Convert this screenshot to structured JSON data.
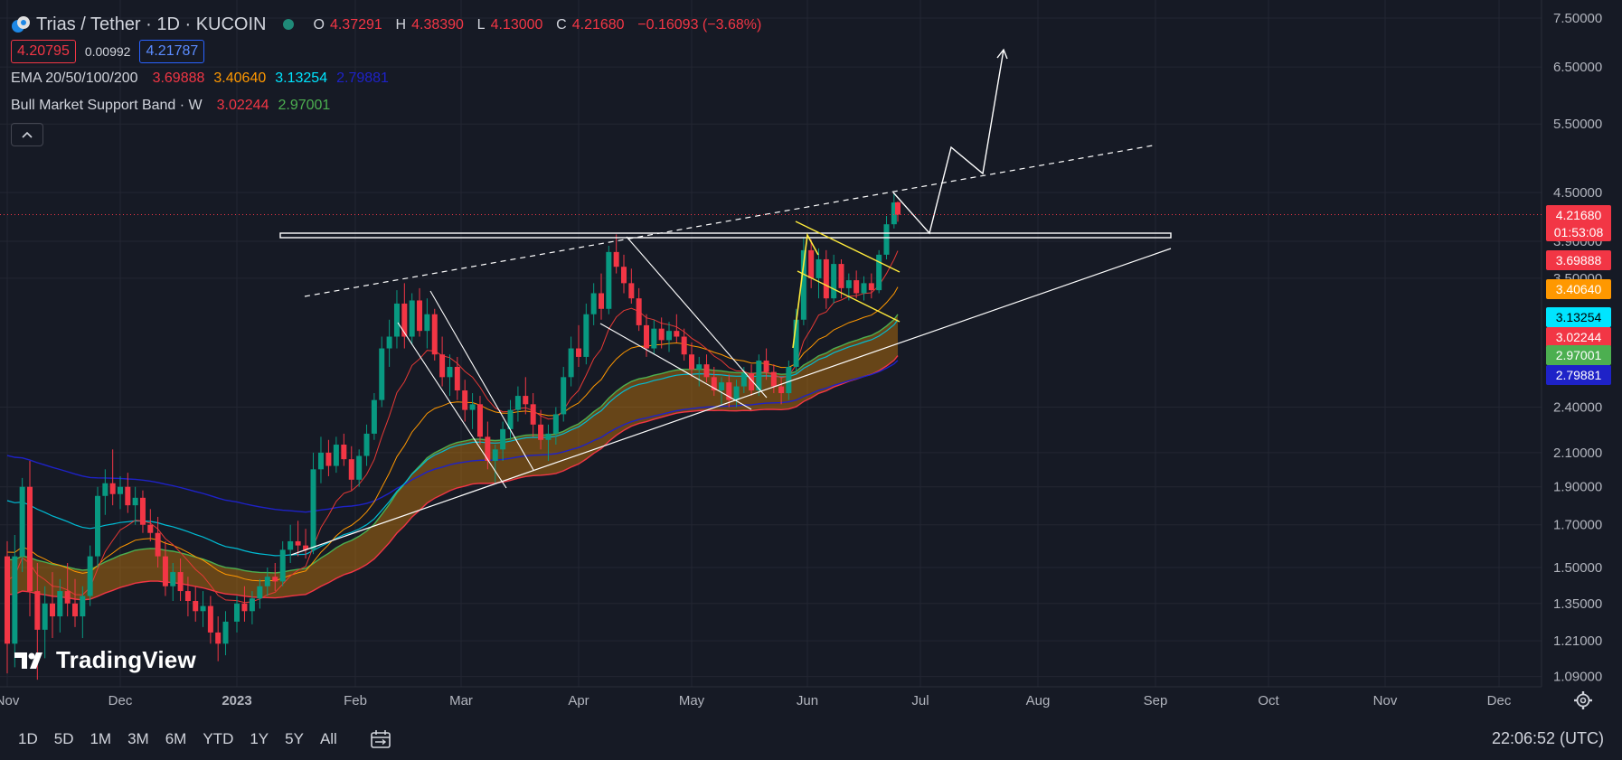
{
  "header": {
    "title": "Trias / Tether · 1D · KUCOIN",
    "ohlc": [
      {
        "k": "O",
        "v": "4.37291"
      },
      {
        "k": "H",
        "v": "4.38390"
      },
      {
        "k": "L",
        "v": "4.13000"
      },
      {
        "k": "C",
        "v": "4.21680"
      }
    ],
    "change": "−0.16093 (−3.68%)",
    "bid": "4.20795",
    "spread": "0.00992",
    "ask": "4.21787"
  },
  "indicators": {
    "ema": {
      "name": "EMA 20/50/100/200",
      "values": [
        {
          "v": "3.69888",
          "color": "#f23645"
        },
        {
          "v": "3.40640",
          "color": "#ff9800"
        },
        {
          "v": "3.13254",
          "color": "#00e5ff"
        },
        {
          "v": "2.79881",
          "color": "#1e22c8"
        }
      ]
    },
    "bmsb": {
      "name": "Bull Market Support Band · W",
      "values": [
        {
          "v": "3.02244",
          "color": "#f23645"
        },
        {
          "v": "2.97001",
          "color": "#4caf50"
        }
      ]
    }
  },
  "timeframes": [
    "1D",
    "5D",
    "1M",
    "3M",
    "6M",
    "YTD",
    "1Y",
    "5Y",
    "All"
  ],
  "clock": "22:06:52 (UTC)",
  "logo": "TradingView",
  "icons": {
    "coin": "trias-coin-icon",
    "range": "date-range-icon",
    "settings": "gear-icon",
    "collapse": "chevron-up-icon"
  },
  "chart_data": {
    "type": "candlestick",
    "symbol": "Trias / Tether",
    "interval": "1D",
    "exchange": "KUCOIN",
    "y_scale": "log",
    "y_ticks": [
      "7.50000",
      "6.50000",
      "5.50000",
      "4.50000",
      "3.90000",
      "3.50000",
      "2.40000",
      "2.10000",
      "1.90000",
      "1.70000",
      "1.50000",
      "1.35000",
      "1.21000",
      "1.09000"
    ],
    "x_ticks": [
      "Nov",
      "Dec",
      "2023",
      "Feb",
      "Mar",
      "Apr",
      "May",
      "Jun",
      "Jul",
      "Aug",
      "Sep",
      "Oct",
      "Nov",
      "Dec"
    ],
    "last_price": {
      "value": "4.21680",
      "countdown": "01:53:08",
      "color": "#f23645"
    },
    "price_labels": [
      {
        "value": "3.69888",
        "color": "#f23645"
      },
      {
        "value": "3.40640",
        "color": "#ff9800"
      },
      {
        "value": "3.13254",
        "color": "#00e5ff"
      },
      {
        "value": "3.02244",
        "color": "#f23645"
      },
      {
        "value": "2.97001",
        "color": "#4caf50"
      },
      {
        "value": "2.79881",
        "color": "#1e22c8"
      }
    ],
    "candles": [
      {
        "d": "Nov 01",
        "o": 1.55,
        "h": 1.62,
        "l": 1.1,
        "c": 1.2
      },
      {
        "d": "Nov 03",
        "o": 1.2,
        "h": 1.65,
        "l": 1.12,
        "c": 1.55
      },
      {
        "d": "Nov 05",
        "o": 1.55,
        "h": 1.95,
        "l": 1.48,
        "c": 1.9
      },
      {
        "d": "Nov 07",
        "o": 1.9,
        "h": 2.05,
        "l": 1.3,
        "c": 1.4
      },
      {
        "d": "Nov 09",
        "o": 1.4,
        "h": 1.52,
        "l": 1.08,
        "c": 1.25
      },
      {
        "d": "Nov 11",
        "o": 1.25,
        "h": 1.42,
        "l": 1.15,
        "c": 1.35
      },
      {
        "d": "Nov 13",
        "o": 1.35,
        "h": 1.48,
        "l": 1.22,
        "c": 1.3
      },
      {
        "d": "Nov 15",
        "o": 1.3,
        "h": 1.45,
        "l": 1.24,
        "c": 1.4
      },
      {
        "d": "Nov 17",
        "o": 1.4,
        "h": 1.52,
        "l": 1.3,
        "c": 1.35
      },
      {
        "d": "Nov 19",
        "o": 1.35,
        "h": 1.45,
        "l": 1.26,
        "c": 1.3
      },
      {
        "d": "Nov 21",
        "o": 1.3,
        "h": 1.42,
        "l": 1.22,
        "c": 1.38
      },
      {
        "d": "Nov 23",
        "o": 1.38,
        "h": 1.6,
        "l": 1.34,
        "c": 1.55
      },
      {
        "d": "Nov 25",
        "o": 1.55,
        "h": 1.9,
        "l": 1.5,
        "c": 1.85
      },
      {
        "d": "Nov 27",
        "o": 1.85,
        "h": 2.0,
        "l": 1.75,
        "c": 1.92
      },
      {
        "d": "Nov 29",
        "o": 1.92,
        "h": 2.12,
        "l": 1.8,
        "c": 1.86
      },
      {
        "d": "Dec 01",
        "o": 1.86,
        "h": 1.96,
        "l": 1.78,
        "c": 1.9
      },
      {
        "d": "Dec 03",
        "o": 1.9,
        "h": 1.98,
        "l": 1.76,
        "c": 1.8
      },
      {
        "d": "Dec 05",
        "o": 1.8,
        "h": 1.9,
        "l": 1.7,
        "c": 1.84
      },
      {
        "d": "Dec 07",
        "o": 1.84,
        "h": 1.88,
        "l": 1.66,
        "c": 1.7
      },
      {
        "d": "Dec 09",
        "o": 1.7,
        "h": 1.78,
        "l": 1.62,
        "c": 1.66
      },
      {
        "d": "Dec 11",
        "o": 1.66,
        "h": 1.74,
        "l": 1.5,
        "c": 1.55
      },
      {
        "d": "Dec 13",
        "o": 1.55,
        "h": 1.62,
        "l": 1.38,
        "c": 1.42
      },
      {
        "d": "Dec 15",
        "o": 1.42,
        "h": 1.52,
        "l": 1.36,
        "c": 1.48
      },
      {
        "d": "Dec 17",
        "o": 1.48,
        "h": 1.54,
        "l": 1.36,
        "c": 1.4
      },
      {
        "d": "Dec 19",
        "o": 1.4,
        "h": 1.46,
        "l": 1.3,
        "c": 1.36
      },
      {
        "d": "Dec 21",
        "o": 1.36,
        "h": 1.42,
        "l": 1.28,
        "c": 1.32
      },
      {
        "d": "Dec 23",
        "o": 1.32,
        "h": 1.4,
        "l": 1.26,
        "c": 1.34
      },
      {
        "d": "Dec 25",
        "o": 1.34,
        "h": 1.38,
        "l": 1.2,
        "c": 1.24
      },
      {
        "d": "Dec 27",
        "o": 1.24,
        "h": 1.3,
        "l": 1.14,
        "c": 1.2
      },
      {
        "d": "Dec 29",
        "o": 1.2,
        "h": 1.32,
        "l": 1.16,
        "c": 1.28
      },
      {
        "d": "Jan 01",
        "o": 1.28,
        "h": 1.38,
        "l": 1.24,
        "c": 1.35
      },
      {
        "d": "Jan 03",
        "o": 1.35,
        "h": 1.42,
        "l": 1.28,
        "c": 1.32
      },
      {
        "d": "Jan 05",
        "o": 1.32,
        "h": 1.4,
        "l": 1.27,
        "c": 1.37
      },
      {
        "d": "Jan 07",
        "o": 1.37,
        "h": 1.45,
        "l": 1.33,
        "c": 1.42
      },
      {
        "d": "Jan 09",
        "o": 1.42,
        "h": 1.5,
        "l": 1.38,
        "c": 1.46
      },
      {
        "d": "Jan 11",
        "o": 1.46,
        "h": 1.52,
        "l": 1.4,
        "c": 1.44
      },
      {
        "d": "Jan 13",
        "o": 1.44,
        "h": 1.62,
        "l": 1.42,
        "c": 1.58
      },
      {
        "d": "Jan 15",
        "o": 1.58,
        "h": 1.7,
        "l": 1.52,
        "c": 1.62
      },
      {
        "d": "Jan 17",
        "o": 1.62,
        "h": 1.72,
        "l": 1.55,
        "c": 1.6
      },
      {
        "d": "Jan 19",
        "o": 1.6,
        "h": 1.68,
        "l": 1.54,
        "c": 1.58
      },
      {
        "d": "Jan 21",
        "o": 1.58,
        "h": 2.1,
        "l": 1.56,
        "c": 2.0
      },
      {
        "d": "Jan 23",
        "o": 2.0,
        "h": 2.2,
        "l": 1.92,
        "c": 2.1
      },
      {
        "d": "Jan 25",
        "o": 2.1,
        "h": 2.18,
        "l": 1.96,
        "c": 2.02
      },
      {
        "d": "Jan 27",
        "o": 2.02,
        "h": 2.2,
        "l": 1.98,
        "c": 2.15
      },
      {
        "d": "Jan 29",
        "o": 2.15,
        "h": 2.22,
        "l": 2.02,
        "c": 2.06
      },
      {
        "d": "Jan 31",
        "o": 2.06,
        "h": 2.14,
        "l": 1.88,
        "c": 1.94
      },
      {
        "d": "Feb 02",
        "o": 1.94,
        "h": 2.12,
        "l": 1.9,
        "c": 2.08
      },
      {
        "d": "Feb 04",
        "o": 2.08,
        "h": 2.28,
        "l": 2.02,
        "c": 2.22
      },
      {
        "d": "Feb 06",
        "o": 2.22,
        "h": 2.5,
        "l": 2.18,
        "c": 2.45
      },
      {
        "d": "Feb 08",
        "o": 2.45,
        "h": 2.95,
        "l": 2.4,
        "c": 2.85
      },
      {
        "d": "Feb 10",
        "o": 2.85,
        "h": 3.1,
        "l": 2.7,
        "c": 2.95
      },
      {
        "d": "Feb 12",
        "o": 2.95,
        "h": 3.38,
        "l": 2.85,
        "c": 3.25
      },
      {
        "d": "Feb 14",
        "o": 3.25,
        "h": 3.45,
        "l": 2.85,
        "c": 2.95
      },
      {
        "d": "Feb 16",
        "o": 2.95,
        "h": 3.35,
        "l": 2.88,
        "c": 3.28
      },
      {
        "d": "Feb 18",
        "o": 3.28,
        "h": 3.4,
        "l": 2.95,
        "c": 3.0
      },
      {
        "d": "Feb 20",
        "o": 3.0,
        "h": 3.3,
        "l": 2.85,
        "c": 3.15
      },
      {
        "d": "Feb 22",
        "o": 3.15,
        "h": 3.2,
        "l": 2.75,
        "c": 2.8
      },
      {
        "d": "Feb 24",
        "o": 2.8,
        "h": 2.95,
        "l": 2.55,
        "c": 2.62
      },
      {
        "d": "Feb 26",
        "o": 2.62,
        "h": 2.8,
        "l": 2.48,
        "c": 2.7
      },
      {
        "d": "Feb 28",
        "o": 2.7,
        "h": 2.78,
        "l": 2.45,
        "c": 2.52
      },
      {
        "d": "Mar 02",
        "o": 2.52,
        "h": 2.6,
        "l": 2.3,
        "c": 2.38
      },
      {
        "d": "Mar 04",
        "o": 2.38,
        "h": 2.5,
        "l": 2.25,
        "c": 2.42
      },
      {
        "d": "Mar 06",
        "o": 2.42,
        "h": 2.48,
        "l": 2.15,
        "c": 2.2
      },
      {
        "d": "Mar 08",
        "o": 2.2,
        "h": 2.3,
        "l": 2.0,
        "c": 2.05
      },
      {
        "d": "Mar 10",
        "o": 2.05,
        "h": 2.15,
        "l": 1.92,
        "c": 2.12
      },
      {
        "d": "Mar 12",
        "o": 2.12,
        "h": 2.3,
        "l": 2.05,
        "c": 2.25
      },
      {
        "d": "Mar 14",
        "o": 2.25,
        "h": 2.45,
        "l": 2.18,
        "c": 2.38
      },
      {
        "d": "Mar 16",
        "o": 2.38,
        "h": 2.55,
        "l": 2.3,
        "c": 2.48
      },
      {
        "d": "Mar 18",
        "o": 2.48,
        "h": 2.62,
        "l": 2.35,
        "c": 2.42
      },
      {
        "d": "Mar 20",
        "o": 2.42,
        "h": 2.5,
        "l": 2.2,
        "c": 2.28
      },
      {
        "d": "Mar 22",
        "o": 2.28,
        "h": 2.38,
        "l": 2.12,
        "c": 2.18
      },
      {
        "d": "Mar 24",
        "o": 2.18,
        "h": 2.28,
        "l": 2.05,
        "c": 2.22
      },
      {
        "d": "Mar 26",
        "o": 2.22,
        "h": 2.4,
        "l": 2.15,
        "c": 2.35
      },
      {
        "d": "Mar 28",
        "o": 2.35,
        "h": 2.7,
        "l": 2.3,
        "c": 2.62
      },
      {
        "d": "Mar 30",
        "o": 2.62,
        "h": 2.95,
        "l": 2.55,
        "c": 2.85
      },
      {
        "d": "Apr 01",
        "o": 2.85,
        "h": 3.05,
        "l": 2.7,
        "c": 2.78
      },
      {
        "d": "Apr 03",
        "o": 2.78,
        "h": 3.25,
        "l": 2.72,
        "c": 3.15
      },
      {
        "d": "Apr 05",
        "o": 3.15,
        "h": 3.45,
        "l": 3.05,
        "c": 3.35
      },
      {
        "d": "Apr 07",
        "o": 3.35,
        "h": 3.55,
        "l": 3.1,
        "c": 3.2
      },
      {
        "d": "Apr 09",
        "o": 3.2,
        "h": 3.85,
        "l": 3.15,
        "c": 3.78
      },
      {
        "d": "Apr 11",
        "o": 3.78,
        "h": 3.98,
        "l": 3.55,
        "c": 3.62
      },
      {
        "d": "Apr 13",
        "o": 3.62,
        "h": 3.75,
        "l": 3.35,
        "c": 3.45
      },
      {
        "d": "Apr 15",
        "o": 3.45,
        "h": 3.6,
        "l": 3.25,
        "c": 3.3
      },
      {
        "d": "Apr 17",
        "o": 3.3,
        "h": 3.4,
        "l": 3.0,
        "c": 3.05
      },
      {
        "d": "Apr 19",
        "o": 3.05,
        "h": 3.15,
        "l": 2.78,
        "c": 2.85
      },
      {
        "d": "Apr 21",
        "o": 2.85,
        "h": 3.1,
        "l": 2.8,
        "c": 3.02
      },
      {
        "d": "Apr 23",
        "o": 3.02,
        "h": 3.12,
        "l": 2.85,
        "c": 2.92
      },
      {
        "d": "Apr 25",
        "o": 2.92,
        "h": 3.08,
        "l": 2.82,
        "c": 3.0
      },
      {
        "d": "Apr 27",
        "o": 3.0,
        "h": 3.15,
        "l": 2.9,
        "c": 2.95
      },
      {
        "d": "Apr 29",
        "o": 2.95,
        "h": 3.02,
        "l": 2.75,
        "c": 2.8
      },
      {
        "d": "May 01",
        "o": 2.8,
        "h": 2.9,
        "l": 2.62,
        "c": 2.68
      },
      {
        "d": "May 03",
        "o": 2.68,
        "h": 2.78,
        "l": 2.55,
        "c": 2.72
      },
      {
        "d": "May 05",
        "o": 2.72,
        "h": 2.8,
        "l": 2.58,
        "c": 2.62
      },
      {
        "d": "May 07",
        "o": 2.62,
        "h": 2.7,
        "l": 2.48,
        "c": 2.52
      },
      {
        "d": "May 09",
        "o": 2.52,
        "h": 2.62,
        "l": 2.42,
        "c": 2.58
      },
      {
        "d": "May 11",
        "o": 2.58,
        "h": 2.64,
        "l": 2.4,
        "c": 2.45
      },
      {
        "d": "May 13",
        "o": 2.45,
        "h": 2.6,
        "l": 2.4,
        "c": 2.55
      },
      {
        "d": "May 15",
        "o": 2.55,
        "h": 2.7,
        "l": 2.5,
        "c": 2.65
      },
      {
        "d": "May 17",
        "o": 2.65,
        "h": 2.72,
        "l": 2.48,
        "c": 2.52
      },
      {
        "d": "May 19",
        "o": 2.52,
        "h": 2.8,
        "l": 2.48,
        "c": 2.75
      },
      {
        "d": "May 21",
        "o": 2.75,
        "h": 2.85,
        "l": 2.6,
        "c": 2.66
      },
      {
        "d": "May 23",
        "o": 2.66,
        "h": 2.72,
        "l": 2.5,
        "c": 2.55
      },
      {
        "d": "May 25",
        "o": 2.55,
        "h": 2.62,
        "l": 2.42,
        "c": 2.5
      },
      {
        "d": "May 27",
        "o": 2.5,
        "h": 2.75,
        "l": 2.45,
        "c": 2.7
      },
      {
        "d": "May 29",
        "o": 2.7,
        "h": 3.2,
        "l": 2.65,
        "c": 3.1
      },
      {
        "d": "May 31",
        "o": 3.1,
        "h": 3.95,
        "l": 3.05,
        "c": 3.8
      },
      {
        "d": "Jun 02",
        "o": 3.8,
        "h": 3.92,
        "l": 3.4,
        "c": 3.5
      },
      {
        "d": "Jun 04",
        "o": 3.5,
        "h": 3.82,
        "l": 3.3,
        "c": 3.7
      },
      {
        "d": "Jun 06",
        "o": 3.7,
        "h": 3.8,
        "l": 3.2,
        "c": 3.3
      },
      {
        "d": "Jun 08",
        "o": 3.3,
        "h": 3.75,
        "l": 3.25,
        "c": 3.65
      },
      {
        "d": "Jun 10",
        "o": 3.65,
        "h": 3.7,
        "l": 3.3,
        "c": 3.4
      },
      {
        "d": "Jun 12",
        "o": 3.4,
        "h": 3.55,
        "l": 3.28,
        "c": 3.48
      },
      {
        "d": "Jun 14",
        "o": 3.48,
        "h": 3.58,
        "l": 3.3,
        "c": 3.35
      },
      {
        "d": "Jun 16",
        "o": 3.35,
        "h": 3.52,
        "l": 3.28,
        "c": 3.45
      },
      {
        "d": "Jun 18",
        "o": 3.45,
        "h": 3.55,
        "l": 3.3,
        "c": 3.38
      },
      {
        "d": "Jun 20",
        "o": 3.38,
        "h": 3.8,
        "l": 3.35,
        "c": 3.75
      },
      {
        "d": "Jun 22",
        "o": 3.75,
        "h": 4.2,
        "l": 3.7,
        "c": 4.1
      },
      {
        "d": "Jun 24",
        "o": 4.1,
        "h": 4.48,
        "l": 4.05,
        "c": 4.37
      },
      {
        "d": "Jun 25",
        "o": 4.37291,
        "h": 4.3839,
        "l": 4.13,
        "c": 4.2168
      }
    ]
  }
}
